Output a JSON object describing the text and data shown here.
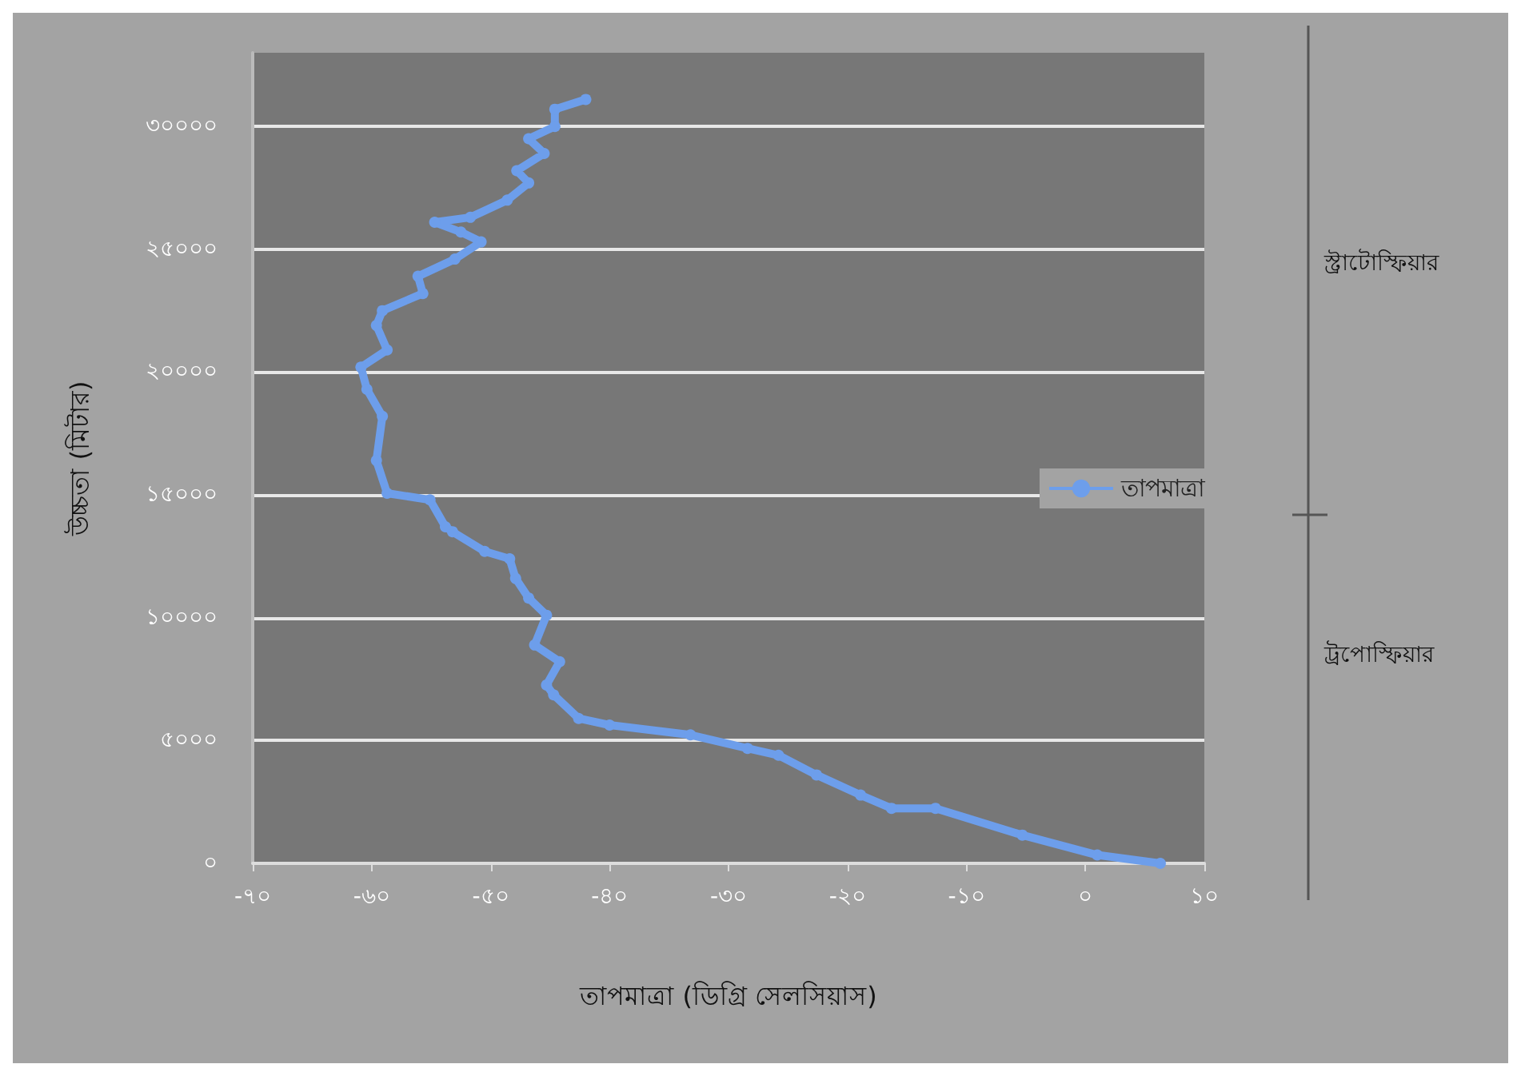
{
  "chart_data": {
    "type": "line",
    "xlabel": "তাপমাত্রা (ডিগ্রি সেলসিয়াস)",
    "ylabel": "উচ্চতা (মিটার)",
    "annotations": [
      "স্ট্রাটোস্ফিয়ার",
      "ট্রপোস্ফিয়ার"
    ],
    "xlim": [
      -70,
      10
    ],
    "xticks": [
      {
        "value": -70,
        "label": "-৭০"
      },
      {
        "value": -60,
        "label": "-৬০"
      },
      {
        "value": -50,
        "label": "-৫০"
      },
      {
        "value": -40,
        "label": "-৪০"
      },
      {
        "value": -30,
        "label": "-৩০"
      },
      {
        "value": -20,
        "label": "-২০"
      },
      {
        "value": -10,
        "label": "-১০"
      },
      {
        "value": 0,
        "label": "০"
      },
      {
        "value": 10,
        "label": "১০"
      }
    ],
    "ylim": [
      0,
      33000
    ],
    "yticks": [
      {
        "value": 0,
        "label": "০"
      },
      {
        "value": 5000,
        "label": "৫০০০"
      },
      {
        "value": 10000,
        "label": "১০০০০"
      },
      {
        "value": 15000,
        "label": "১৫০০০"
      },
      {
        "value": 20000,
        "label": "২০০০০"
      },
      {
        "value": 25000,
        "label": "২৫০০০"
      },
      {
        "value": 30000,
        "label": "৩০০০০"
      }
    ],
    "grid": "y",
    "legend": "right",
    "marker": "circle",
    "line_style": "solid",
    "series": [
      {
        "name": "তাপমাত্রা",
        "color": "#6d9eeb",
        "x": [
          6.3,
          1,
          -5.3,
          -12.6,
          -16.3,
          -18.9,
          -22.6,
          -25.8,
          -28.4,
          -33.2,
          -40,
          -42.6,
          -44.7,
          -45.3,
          -44.2,
          -46.3,
          -45.3,
          -46.8,
          -47.9,
          -48.4,
          -50.5,
          -53.2,
          -53.8,
          -55.1,
          -58.7,
          -59.6,
          -59.1,
          -60.4,
          -60.9,
          -58.7,
          -59.6,
          -59.1,
          -55.7,
          -56.1,
          -53,
          -50.8,
          -52.5,
          -54.7,
          -51.7,
          -48.6,
          -46.8,
          -47.8,
          -45.5,
          -46.8,
          -44.6,
          -44.6,
          -42
        ],
        "values": [
          0,
          340,
          1150,
          2240,
          2240,
          2780,
          3600,
          4400,
          4680,
          5230,
          5630,
          5900,
          6860,
          7260,
          8210,
          8890,
          10100,
          10800,
          11600,
          12400,
          12700,
          13500,
          13700,
          14800,
          15070,
          16400,
          18200,
          19300,
          20200,
          20900,
          21900,
          22500,
          23200,
          23900,
          24600,
          25300,
          25700,
          26100,
          26300,
          27000,
          27700,
          28200,
          28900,
          29500,
          30000,
          30700,
          31100
        ]
      }
    ]
  }
}
